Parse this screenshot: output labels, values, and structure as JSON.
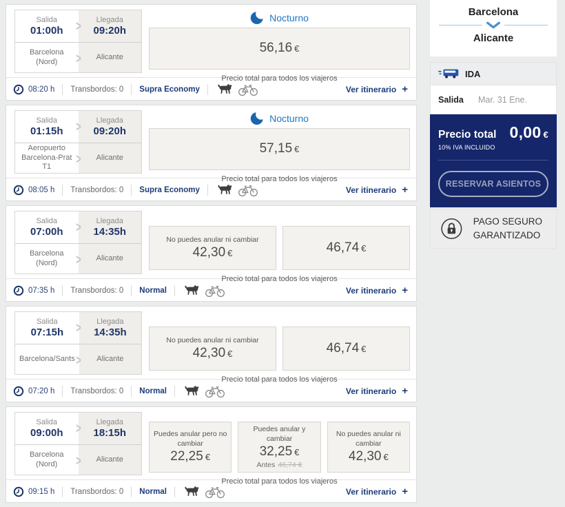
{
  "labels": {
    "salida": "Salida",
    "llegada": "Llegada",
    "precio_note": "Precio total para todos los viajeros",
    "ver_itinerario": "Ver itinerario",
    "plus": "+"
  },
  "colors": {
    "sidebar_navy": "#15266b",
    "link_navy": "#1c3c78",
    "nocturno_blue": "#1e78c2",
    "moon_blue": "#1a66ae"
  },
  "cards": [
    {
      "salida_time": "01:00h",
      "llegada_time": "09:20h",
      "origin": "Barcelona (Nord)",
      "destination": "Alicante",
      "badge": "Nocturno",
      "fares": [
        {
          "price": "56,16",
          "currency": "€"
        }
      ],
      "duration": "08:20 h",
      "transbordos": "Transbordos: 0",
      "fare_class": "Supra Economy"
    },
    {
      "salida_time": "01:15h",
      "llegada_time": "09:20h",
      "origin": "Aeropuerto Barcelona-Prat T1",
      "destination": "Alicante",
      "badge": "Nocturno",
      "fares": [
        {
          "price": "57,15",
          "currency": "€"
        }
      ],
      "duration": "08:05 h",
      "transbordos": "Transbordos: 0",
      "fare_class": "Supra Economy"
    },
    {
      "salida_time": "07:00h",
      "llegada_time": "14:35h",
      "origin": "Barcelona (Nord)",
      "destination": "Alicante",
      "fares": [
        {
          "label": "No puedes anular ni cambiar",
          "price": "42,30",
          "currency": "€"
        },
        {
          "price": "46,74",
          "currency": "€"
        }
      ],
      "duration": "07:35 h",
      "transbordos": "Transbordos: 0",
      "fare_class": "Normal"
    },
    {
      "salida_time": "07:15h",
      "llegada_time": "14:35h",
      "origin": "Barcelona/Sants",
      "destination": "Alicante",
      "fares": [
        {
          "label": "No puedes anular ni cambiar",
          "price": "42,30",
          "currency": "€"
        },
        {
          "price": "46,74",
          "currency": "€"
        }
      ],
      "duration": "07:20 h",
      "transbordos": "Transbordos: 0",
      "fare_class": "Normal"
    },
    {
      "salida_time": "09:00h",
      "llegada_time": "18:15h",
      "origin": "Barcelona (Nord)",
      "destination": "Alicante",
      "fares": [
        {
          "label": "Puedes anular pero no cambiar",
          "price": "22,25",
          "currency": "€"
        },
        {
          "label": "Puedes anular y cambiar",
          "price": "32,25",
          "currency": "€",
          "antes_label": "Antes",
          "antes_price": "46,74 €"
        },
        {
          "label": "No puedes anular ni cambiar",
          "price": "42,30",
          "currency": "€"
        }
      ],
      "duration": "09:15 h",
      "transbordos": "Transbordos: 0",
      "fare_class": "Normal"
    }
  ],
  "sidebar": {
    "origin": "Barcelona",
    "destination": "Alicante",
    "direction_label": "IDA",
    "salida_label": "Salida",
    "salida_date": "Mar. 31 Ene.",
    "precio_total_label": "Precio total",
    "precio_value": "0,00",
    "precio_currency": "€",
    "iva_note": "10% IVA INCLUIDO",
    "reserve_button": "RESERVAR ASIENTOS",
    "pago_seguro": "PAGO SEGURO GARANTIZADO"
  }
}
